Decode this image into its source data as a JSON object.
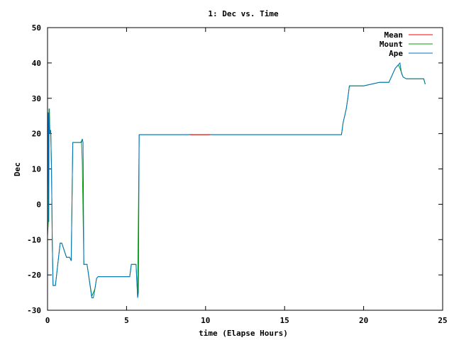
{
  "chart_data": {
    "type": "line",
    "title": "1: Dec vs. Time",
    "xlabel": "time (Elapse Hours)",
    "ylabel": "Dec",
    "xlim": [
      0,
      25
    ],
    "ylim": [
      -30,
      50
    ],
    "xticks": [
      0,
      5,
      10,
      15,
      20,
      25
    ],
    "yticks": [
      -30,
      -20,
      -10,
      0,
      10,
      20,
      30,
      40,
      50
    ],
    "grid": false,
    "legend_position": "top-right",
    "series": [
      {
        "name": "Mean",
        "color": "#ff0000",
        "x": [
          9.0,
          10.3
        ],
        "y": [
          19.7,
          19.7
        ]
      },
      {
        "name": "Mount",
        "color": "#00a000",
        "x": [
          0,
          0.05,
          0.1,
          0.12,
          0.15,
          0.2,
          0.25,
          0.3,
          0.35,
          0.45,
          0.5,
          0.8,
          0.9,
          1.2,
          1.4,
          1.5,
          1.6,
          2.1,
          2.15,
          2.2,
          2.3,
          2.4,
          2.5,
          2.8,
          3.0,
          3.1,
          3.2,
          5.2,
          5.3,
          5.6,
          5.7,
          5.8,
          5.85,
          5.9,
          6.0,
          9.0,
          12.0,
          15.0,
          18.6,
          18.7,
          18.9,
          19.0,
          19.1,
          19.3,
          20.0,
          20.5,
          21.0,
          21.6,
          22.0,
          22.2,
          22.3,
          22.5,
          22.7,
          23.0,
          23.5,
          23.8,
          23.9
        ],
        "y": [
          -9,
          -5,
          27,
          27,
          20,
          21,
          10,
          -11,
          -23,
          -23,
          -23,
          -11,
          -11,
          -15,
          -15,
          -16,
          17.5,
          17.5,
          18,
          12,
          -17,
          -17,
          -17,
          -26,
          -24,
          -21,
          -20.5,
          -20.5,
          -17,
          -17,
          -26,
          19.7,
          19.7,
          19.7,
          19.7,
          19.7,
          19.7,
          19.7,
          19.7,
          23,
          27,
          30,
          33.5,
          33.5,
          33.5,
          34,
          34.5,
          34.5,
          38.5,
          39.5,
          38.5,
          36,
          35.5,
          35.5,
          35.5,
          35.5,
          34
        ]
      },
      {
        "name": "Ape",
        "color": "#0070c0",
        "x": [
          0,
          0.05,
          0.08,
          0.1,
          0.15,
          0.2,
          0.25,
          0.3,
          0.35,
          0.45,
          0.5,
          0.8,
          0.9,
          1.2,
          1.4,
          1.5,
          1.6,
          2.1,
          2.15,
          2.2,
          2.25,
          2.3,
          2.5,
          2.8,
          2.9,
          3.0,
          3.1,
          3.2,
          5.2,
          5.3,
          5.6,
          5.7,
          5.75,
          5.8,
          5.85,
          5.9,
          9.0,
          12.0,
          15.0,
          18.6,
          18.7,
          18.9,
          19.0,
          19.1,
          19.3,
          20.0,
          20.5,
          21.0,
          21.6,
          22.0,
          22.2,
          22.3,
          22.4,
          22.5,
          22.7,
          23.0,
          23.5,
          23.8,
          23.9
        ],
        "y": [
          -9,
          26,
          -5,
          27,
          20,
          21,
          10,
          -11,
          -23,
          -23,
          -23,
          -11,
          -11,
          -15,
          -15,
          -16,
          17.5,
          17.5,
          17.5,
          18.5,
          17.5,
          -17,
          -17,
          -26.5,
          -26.5,
          -24,
          -21,
          -20.5,
          -20.5,
          -17,
          -17,
          -26.5,
          -25,
          19.7,
          19.7,
          19.7,
          19.7,
          19.7,
          19.7,
          19.7,
          23,
          27,
          30,
          33.5,
          33.5,
          33.5,
          34,
          34.5,
          34.5,
          38.5,
          39.5,
          40,
          37,
          36,
          35.5,
          35.5,
          35.5,
          35.5,
          34
        ]
      }
    ]
  }
}
